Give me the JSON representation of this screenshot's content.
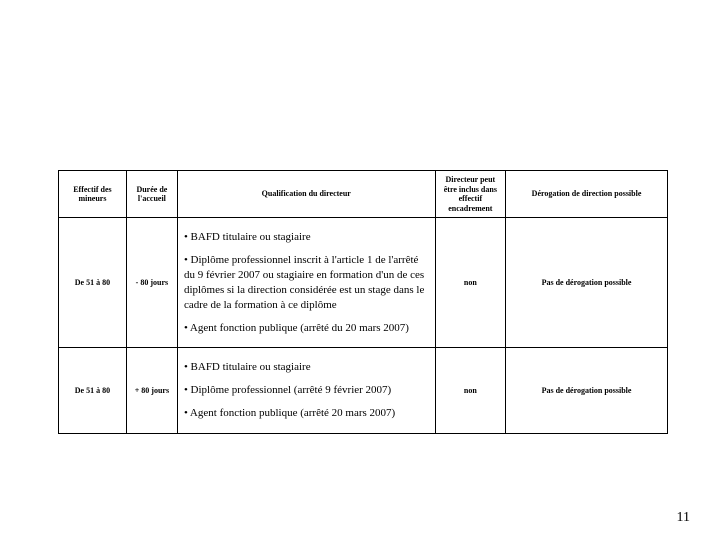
{
  "table": {
    "headers": {
      "effectif": "Effectif des mineurs",
      "duree": "Durée de l'accueil",
      "qualification": "Qualification du directeur",
      "inclus": "Directeur peut être inclus dans effectif encadrement",
      "derogation": "Dérogation de direction possible"
    },
    "rows": [
      {
        "effectif": "De 51 à 80",
        "duree": "- 80 jours",
        "qual_items": [
          "• BAFD titulaire ou stagiaire",
          "• Diplôme professionnel inscrit à l'article 1 de l'arrêté du 9 février 2007 ou stagiaire en formation d'un de ces diplômes si la direction considérée est un stage dans le cadre de la formation à ce diplôme",
          "• Agent fonction publique (arrêté du 20 mars 2007)"
        ],
        "inclus": "non",
        "derog": "Pas de dérogation possible"
      },
      {
        "effectif": "De 51 à 80",
        "duree": "+ 80 jours",
        "qual_items": [
          "• BAFD titulaire ou stagiaire",
          "• Diplôme professionnel (arrêté 9 février 2007)",
          "• Agent fonction publique (arrêté 20 mars 2007)"
        ],
        "inclus": "non",
        "derog": "Pas de dérogation possible"
      }
    ]
  },
  "page_number": "11",
  "colors": {
    "text": "#000000",
    "background": "#ffffff",
    "border": "#000000"
  }
}
